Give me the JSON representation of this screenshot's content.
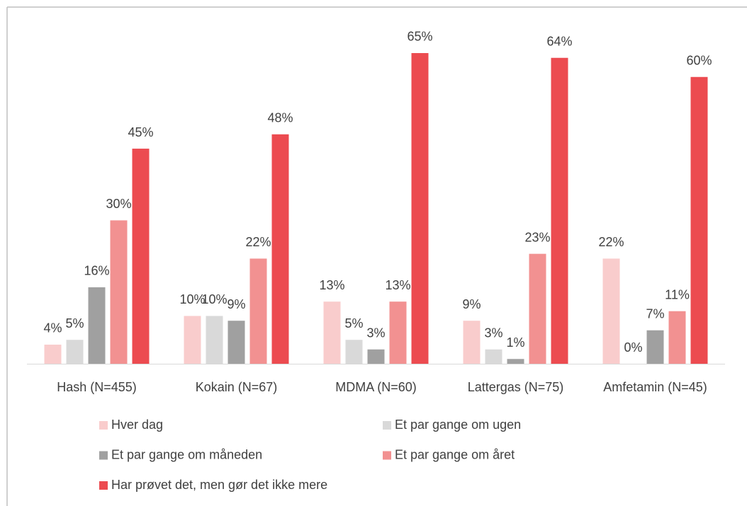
{
  "chart_data": {
    "type": "bar",
    "categories": [
      "Hash (N=455)",
      "Kokain (N=67)",
      "MDMA (N=60)",
      "Lattergas (N=75)",
      "Amfetamin (N=45)"
    ],
    "series": [
      {
        "name": "Hver dag",
        "color": "#f9cccc",
        "values": [
          4,
          10,
          13,
          9,
          22
        ],
        "value_labels": [
          "4%",
          "10%",
          "13%",
          "9%",
          "22%"
        ]
      },
      {
        "name": "Et par gange om ugen",
        "color": "#d9d9d9",
        "values": [
          5,
          10,
          5,
          3,
          0
        ],
        "value_labels": [
          "5%",
          "10%",
          "5%",
          "3%",
          "0%"
        ]
      },
      {
        "name": "Et par gange om måneden",
        "color": "#a0a0a0",
        "values": [
          16,
          9,
          3,
          1,
          7
        ],
        "value_labels": [
          "16%",
          "9%",
          "3%",
          "1%",
          "7%"
        ]
      },
      {
        "name": "Et par gange om året",
        "color": "#f29191",
        "values": [
          30,
          22,
          13,
          23,
          11
        ],
        "value_labels": [
          "30%",
          "22%",
          "13%",
          "23%",
          "11%"
        ]
      },
      {
        "name": "Har prøvet det, men gør det ikke mere",
        "color": "#ec4b50",
        "values": [
          45,
          48,
          65,
          64,
          60
        ],
        "value_labels": [
          "45%",
          "48%",
          "65%",
          "64%",
          "60%"
        ]
      }
    ]
  }
}
